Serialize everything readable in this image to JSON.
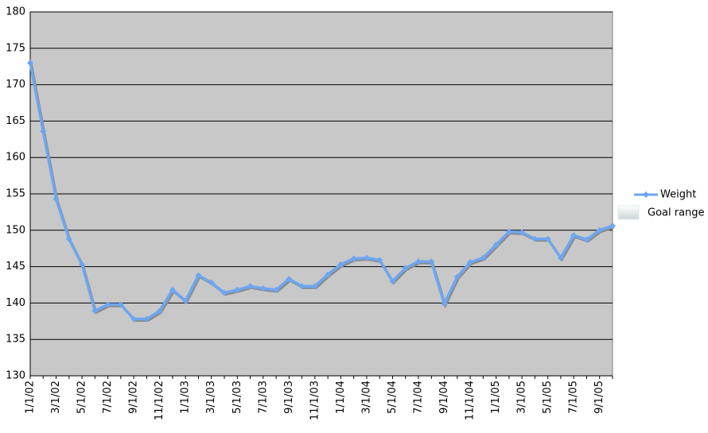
{
  "chart_data": {
    "type": "line",
    "categories": [
      "1/1/02",
      null,
      "3/1/02",
      null,
      "5/1/02",
      null,
      "7/1/02",
      null,
      "9/1/02",
      null,
      "11/1/02",
      null,
      "1/1/03",
      null,
      "3/1/03",
      null,
      "5/1/03",
      null,
      "7/1/03",
      null,
      "9/1/03",
      null,
      "11/1/03",
      null,
      "1/1/04",
      null,
      "3/1/04",
      null,
      "5/1/04",
      null,
      "7/1/04",
      null,
      "9/1/04",
      null,
      "11/1/04",
      null,
      "1/1/05",
      null,
      "3/1/05",
      null,
      "5/1/05",
      null,
      "7/1/05",
      null,
      "9/1/05",
      null
    ],
    "series": [
      {
        "name": "Weight",
        "color": "#6ea6f0",
        "values": [
          173,
          163.6,
          154.3,
          148.8,
          145.3,
          138.9,
          139.8,
          139.8,
          137.8,
          137.8,
          138.9,
          141.8,
          140.3,
          143.8,
          142.8,
          141.4,
          141.8,
          142.3,
          142.0,
          141.8,
          143.3,
          142.3,
          142.3,
          143.9,
          145.3,
          146.1,
          146.2,
          145.9,
          143.0,
          144.8,
          145.7,
          145.7,
          139.9,
          143.6,
          145.6,
          146.2,
          148.0,
          149.8,
          149.7,
          148.8,
          148.8,
          146.2,
          149.3,
          148.7,
          150.0,
          150.6
        ]
      },
      {
        "name": "Goal range",
        "color": "#dfe9e9"
      }
    ],
    "ylim": [
      130,
      180
    ],
    "yticks": [
      130,
      135,
      140,
      145,
      150,
      155,
      160,
      165,
      170,
      175,
      180
    ],
    "grid": true,
    "background": "#c8c8c8",
    "legend": "right"
  }
}
